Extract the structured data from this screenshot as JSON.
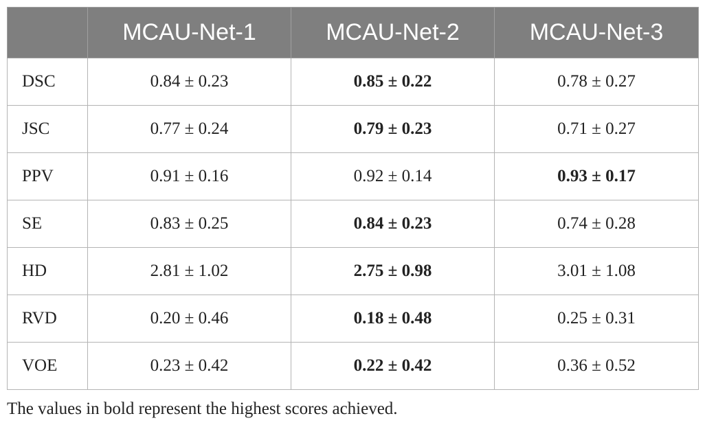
{
  "table": {
    "columns": [
      "",
      "MCAU-Net-1",
      "MCAU-Net-2",
      "MCAU-Net-3"
    ],
    "rows": [
      {
        "metric": "DSC",
        "values": [
          "0.84 ± 0.23",
          "0.85 ± 0.22",
          "0.78 ± 0.27"
        ],
        "best": [
          false,
          true,
          false
        ]
      },
      {
        "metric": "JSC",
        "values": [
          "0.77 ± 0.24",
          "0.79 ± 0.23",
          "0.71 ± 0.27"
        ],
        "best": [
          false,
          true,
          false
        ]
      },
      {
        "metric": "PPV",
        "values": [
          "0.91 ± 0.16",
          "0.92 ± 0.14",
          "0.93 ± 0.17"
        ],
        "best": [
          false,
          false,
          true
        ]
      },
      {
        "metric": "SE",
        "values": [
          "0.83 ± 0.25",
          "0.84 ± 0.23",
          "0.74 ± 0.28"
        ],
        "best": [
          false,
          true,
          false
        ]
      },
      {
        "metric": "HD",
        "values": [
          "2.81 ± 1.02",
          "2.75 ± 0.98",
          "3.01 ± 1.08"
        ],
        "best": [
          false,
          true,
          false
        ]
      },
      {
        "metric": "RVD",
        "values": [
          "0.20 ± 0.46",
          "0.18 ± 0.48",
          "0.25 ± 0.31"
        ],
        "best": [
          false,
          true,
          false
        ]
      },
      {
        "metric": "VOE",
        "values": [
          "0.23 ± 0.42",
          "0.22 ± 0.42",
          "0.36 ± 0.52"
        ],
        "best": [
          false,
          true,
          false
        ]
      }
    ]
  },
  "footnote": "The values in bold represent the highest scores achieved.",
  "colors": {
    "header_bg": "#7f7f7f",
    "header_text": "#ffffff",
    "grid": "#b4b4b4"
  }
}
